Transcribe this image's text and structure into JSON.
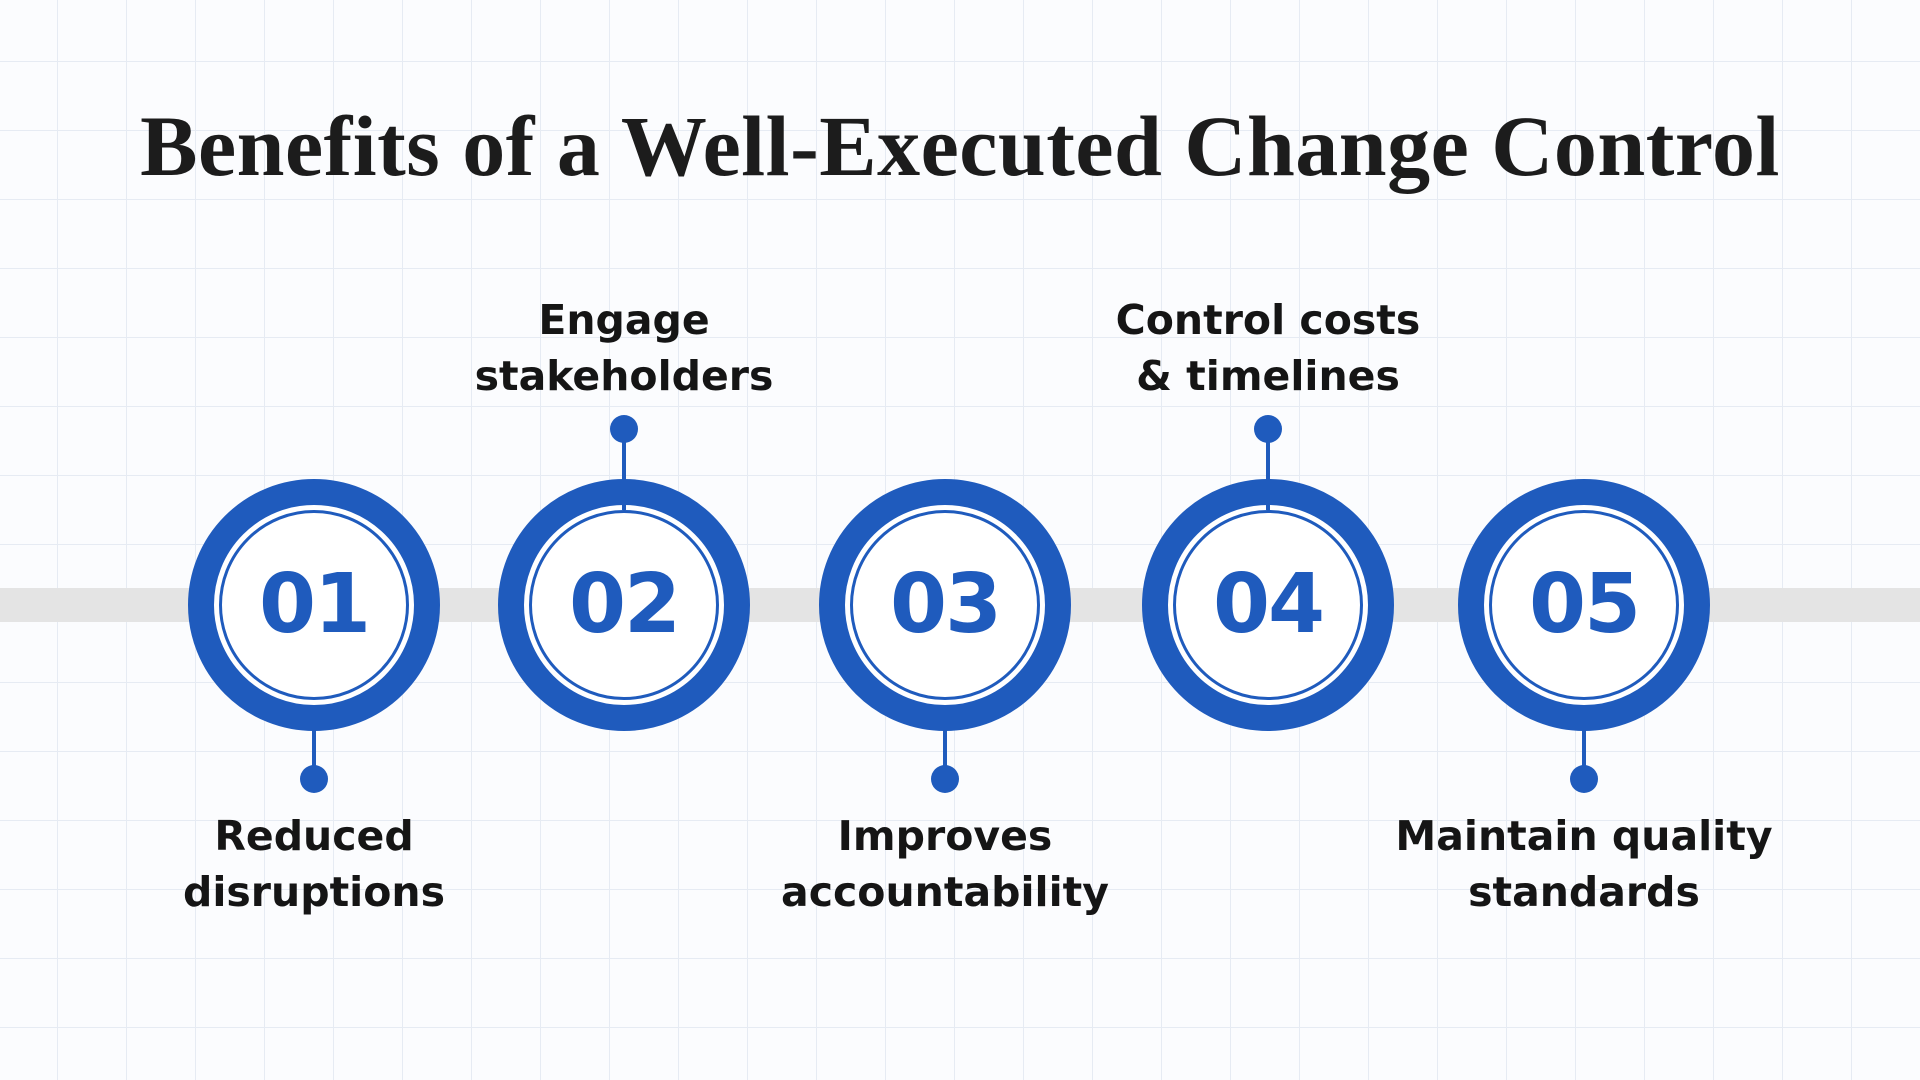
{
  "title": "Benefits of a Well-Executed Change Control",
  "colors": {
    "accent": "#1f5bbd",
    "timeline": "#e4e4e4",
    "text": "#151515"
  },
  "steps": [
    {
      "number": "01",
      "label": "Reduced\ndisruptions",
      "position": "below"
    },
    {
      "number": "02",
      "label": "Engage\nstakeholders",
      "position": "above"
    },
    {
      "number": "03",
      "label": "Improves\naccountability",
      "position": "below"
    },
    {
      "number": "04",
      "label": "Control costs\n& timelines",
      "position": "above"
    },
    {
      "number": "05",
      "label": "Maintain quality\nstandards",
      "position": "below"
    }
  ]
}
